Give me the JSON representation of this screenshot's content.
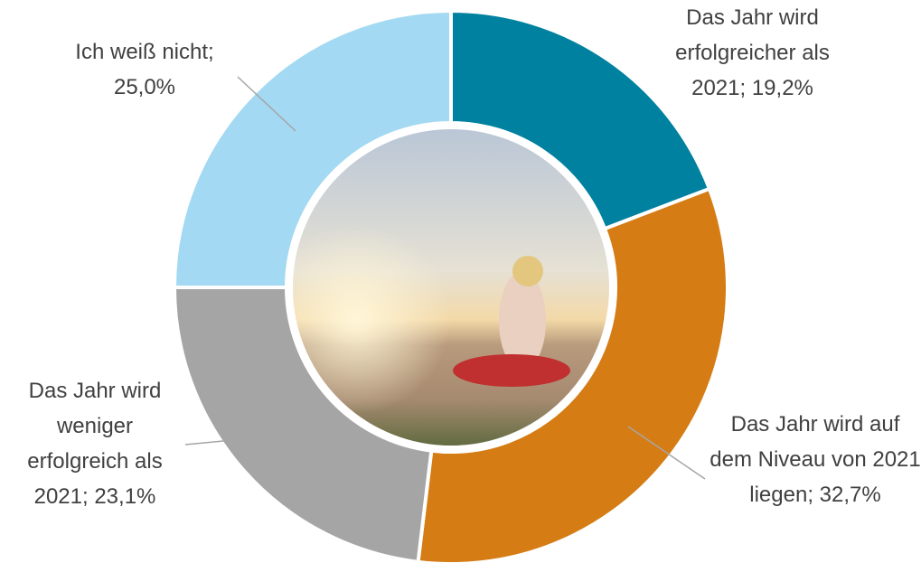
{
  "chart_data": {
    "type": "pie",
    "categories": [
      "Das Jahr wird erfolgreicher als 2021;",
      "Das Jahr wird auf dem Niveau von 2021 liegen;",
      "Das Jahr wird weniger erfolgreich als 2021;",
      "Ich weiß nicht;"
    ],
    "values": [
      19.2,
      32.7,
      23.1,
      25.0
    ],
    "value_labels": [
      "19,2%",
      "32,7%",
      "23,1%",
      "25,0%"
    ],
    "colors": [
      "#00819f",
      "#d57c14",
      "#a5a5a5",
      "#a3d9f2"
    ]
  }
}
